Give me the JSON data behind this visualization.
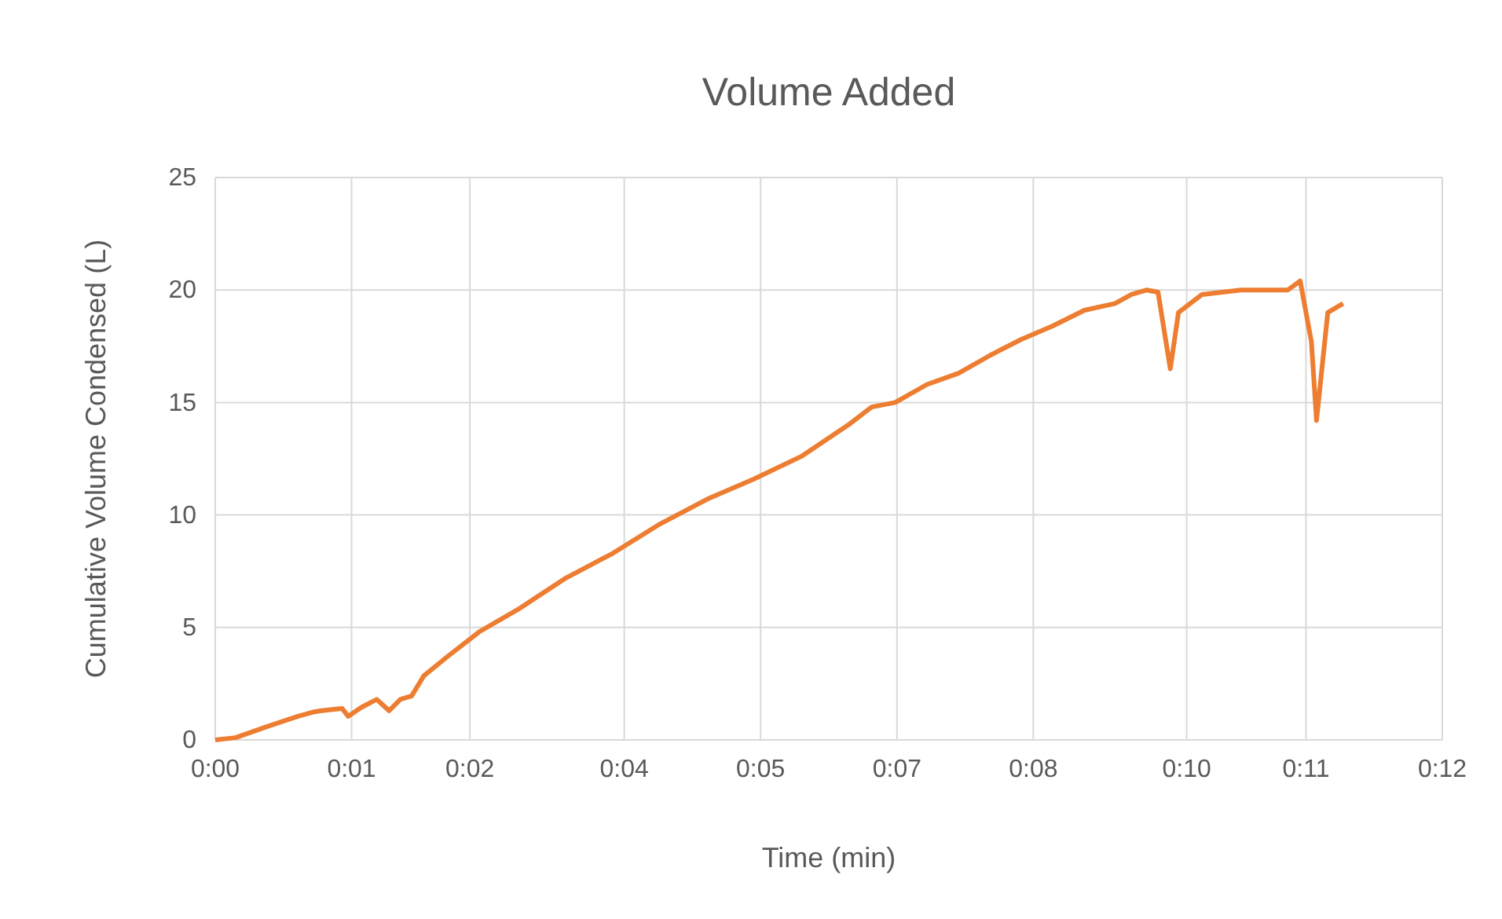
{
  "chart_data": {
    "type": "line",
    "title": "Volume Added",
    "xlabel": "Time (min)",
    "ylabel": "Cumulative Volume Condensed (L)",
    "xlim": [
      0,
      12
    ],
    "xticks": [
      {
        "value": 0,
        "label": "0:00"
      },
      {
        "value": 1.333,
        "label": "0:01"
      },
      {
        "value": 2.49,
        "label": "0:02"
      },
      {
        "value": 4,
        "label": "0:04"
      },
      {
        "value": 5.333,
        "label": "0:05"
      },
      {
        "value": 6.667,
        "label": "0:07"
      },
      {
        "value": 8,
        "label": "0:08"
      },
      {
        "value": 9.5,
        "label": "0:10"
      },
      {
        "value": 10.667,
        "label": "0:11"
      },
      {
        "value": 12,
        "label": "0:12"
      }
    ],
    "ylim": [
      0,
      25
    ],
    "yticks": [
      0,
      5,
      10,
      15,
      20,
      25
    ],
    "grid": true,
    "series": [
      {
        "color": "#ed7d31",
        "x": [
          0,
          0.2,
          0.51,
          0.81,
          0.97,
          1.04,
          1.24,
          1.3,
          1.43,
          1.58,
          1.7,
          1.81,
          1.92,
          2.04,
          2.27,
          2.58,
          2.96,
          3.43,
          3.89,
          4.35,
          4.81,
          5.27,
          5.73,
          6.19,
          6.42,
          6.65,
          6.96,
          7.27,
          7.58,
          7.88,
          8.19,
          8.5,
          8.8,
          8.96,
          9.11,
          9.22,
          9.34,
          9.42,
          9.65,
          10.03,
          10.49,
          10.61,
          10.72,
          10.77,
          10.88,
          11.03
        ],
        "values": [
          0,
          0.1,
          0.6,
          1.05,
          1.25,
          1.3,
          1.4,
          1.05,
          1.45,
          1.8,
          1.3,
          1.8,
          1.95,
          2.85,
          3.7,
          4.8,
          5.8,
          7.2,
          8.3,
          9.6,
          10.7,
          11.6,
          12.6,
          14,
          14.8,
          15,
          15.8,
          16.3,
          17.1,
          17.8,
          18.4,
          19.1,
          19.4,
          19.8,
          20,
          19.9,
          16.5,
          19,
          19.8,
          20,
          20,
          20.4,
          17.7,
          14.2,
          19,
          19.4
        ]
      }
    ]
  }
}
